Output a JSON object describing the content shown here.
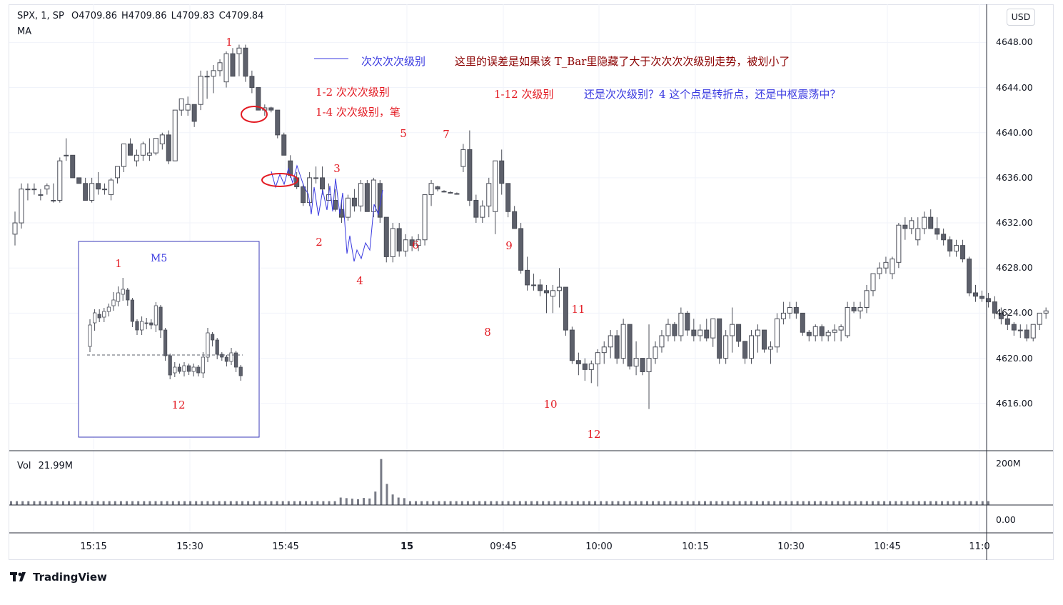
{
  "header": {
    "symbol_line": "SPX, 1, SP",
    "ohlc": [
      {
        "key": "O",
        "value": "4709.86"
      },
      {
        "key": "H",
        "value": "4709.86"
      },
      {
        "key": "L",
        "value": "4709.83"
      },
      {
        "key": "C",
        "value": "4709.84"
      }
    ],
    "indicator": "MA",
    "currency_button": "USD"
  },
  "price_axis": {
    "ticks": [
      "4648.00",
      "4644.00",
      "4640.00",
      "4636.00",
      "4632.00",
      "4628.00",
      "4624.00",
      "4620.00",
      "4616.00"
    ],
    "volume_ticks": [
      "200M",
      "0.00"
    ]
  },
  "time_axis": {
    "ticks": [
      "15:15",
      "15:30",
      "15:45",
      "15",
      "09:45",
      "10:00",
      "10:15",
      "10:30",
      "10:45",
      "11:0"
    ],
    "bold_tick": "15"
  },
  "volume_pane": {
    "label": "Vol",
    "value": "21.99M"
  },
  "annotations": {
    "legend_note": "次次次次级别",
    "error_note": "这里的误差是如果该 T_Bar里隐藏了大于次次次次级别走势，被划小了",
    "note_1_2": "1-2 次次次级别",
    "note_1_4": "1-4 次次级别，笔",
    "note_1_12": "1-12 次级别",
    "question_note": "还是次次级别？4 这个点是转折点，还是中枢震荡中？",
    "point_labels": [
      "1",
      "2",
      "3",
      "4",
      "5",
      "6",
      "7",
      "8",
      "9",
      "10",
      "11",
      "12"
    ]
  },
  "inset": {
    "title": "M5",
    "labels": [
      "1",
      "12"
    ]
  },
  "brand": {
    "name": "TradingView"
  },
  "colors": {
    "up_candle": "#ffffff",
    "down_candle": "#5d606b",
    "candle_border": "#4a4d57",
    "annotation_red": "#e31b23",
    "annotation_darkred": "#8b0000",
    "annotation_blue": "#3a3ae0",
    "inset_border": "#3a3ab8",
    "grid": "#f0f3fa"
  },
  "chart_data": {
    "type": "candlestick",
    "y_unit": "price",
    "ylim": [
      4612.5,
      4651.0
    ],
    "candles": [
      [
        4631,
        4633,
        4630,
        4632
      ],
      [
        4632,
        4635.5,
        4631.5,
        4635
      ],
      [
        4635,
        4635.5,
        4634,
        4635
      ],
      [
        4635,
        4635.5,
        4634.5,
        4635
      ],
      [
        4634.5,
        4635,
        4634,
        4634.5
      ],
      [
        4635,
        4635.5,
        4634.5,
        4635.3
      ],
      [
        4634,
        4635.5,
        4633.8,
        4634
      ],
      [
        4634,
        4637.8,
        4633.8,
        4637.5
      ],
      [
        4638,
        4639.5,
        4637.5,
        4638
      ],
      [
        4638,
        4638,
        4636,
        4636
      ],
      [
        4636,
        4636,
        4635.5,
        4635.5
      ],
      [
        4635.5,
        4636,
        4634,
        4634
      ],
      [
        4634,
        4636,
        4633.8,
        4635.5
      ],
      [
        4635.5,
        4636.5,
        4634.5,
        4635
      ],
      [
        4635,
        4635.5,
        4634.5,
        4635
      ],
      [
        4634.5,
        4636,
        4634,
        4635.8
      ],
      [
        4636,
        4637,
        4635.5,
        4637
      ],
      [
        4637,
        4639,
        4636.5,
        4639
      ],
      [
        4639,
        4639.5,
        4638,
        4638
      ],
      [
        4637.5,
        4638.5,
        4637,
        4638
      ],
      [
        4638,
        4639.2,
        4637.5,
        4639
      ],
      [
        4638,
        4639.5,
        4637.5,
        4638.2
      ],
      [
        4638.2,
        4639.5,
        4638,
        4639.5
      ],
      [
        4639,
        4640,
        4638.5,
        4639.8
      ],
      [
        4639.8,
        4640.2,
        4637.2,
        4637.5
      ],
      [
        4637.5,
        4642,
        4637.5,
        4642
      ],
      [
        4642,
        4643,
        4641.5,
        4643
      ],
      [
        4642,
        4643.2,
        4641.5,
        4642.5
      ],
      [
        4642.5,
        4642.5,
        4640.5,
        4641
      ],
      [
        4642.5,
        4645.5,
        4642,
        4645
      ],
      [
        4645,
        4645.5,
        4643,
        4645
      ],
      [
        4645,
        4646,
        4643.5,
        4645.5
      ],
      [
        4645.5,
        4646.5,
        4645,
        4646.2
      ],
      [
        4644.5,
        4647.2,
        4644,
        4647
      ],
      [
        4647,
        4647.5,
        4645,
        4645
      ],
      [
        4647,
        4647.8,
        4645,
        4647.5
      ],
      [
        4647.5,
        4647.8,
        4644.5,
        4645
      ],
      [
        4645,
        4645.5,
        4643.5,
        4644
      ],
      [
        4644,
        4644,
        4642,
        4642
      ],
      [
        4642,
        4642.5,
        4641.5,
        4642.2
      ],
      [
        4642.2,
        4642.3,
        4641.8,
        4642
      ],
      [
        4642,
        4642,
        4639.5,
        4639.8
      ],
      [
        4639.8,
        4640,
        4638,
        4638
      ],
      [
        4637.5,
        4638,
        4636,
        4636.2
      ],
      [
        4636,
        4636.5,
        4635,
        4635.2
      ],
      [
        4635.2,
        4635.5,
        4633.5,
        4633.8
      ],
      [
        4633.8,
        4636.5,
        4633.5,
        4636
      ],
      [
        4636,
        4637,
        4635.5,
        4636
      ],
      [
        4636,
        4637,
        4634.5,
        4635
      ],
      [
        4634,
        4635.5,
        4634,
        4634.5
      ],
      [
        4634,
        4635,
        4633,
        4633.2
      ],
      [
        4633.2,
        4634,
        4632,
        4632.5
      ],
      [
        4632.5,
        4634.5,
        4632.2,
        4634.2
      ],
      [
        4634.2,
        4635,
        4633,
        4633.5
      ],
      [
        4633.5,
        4635.8,
        4633,
        4635.5
      ],
      [
        4635.5,
        4635.8,
        4633,
        4633
      ],
      [
        4633,
        4636,
        4632.5,
        4635.8
      ],
      [
        4635.5,
        4635.8,
        4632,
        4632.5
      ],
      [
        4632.5,
        4632.5,
        4628.5,
        4629
      ],
      [
        4629,
        4632,
        4628.5,
        4631.5
      ],
      [
        4631.5,
        4632,
        4629,
        4629.5
      ],
      [
        4629.5,
        4631,
        4629,
        4630.5
      ],
      [
        4630.5,
        4630.8,
        4629.5,
        4630
      ],
      [
        4630,
        4631,
        4629.5,
        4630.5
      ],
      [
        4630.5,
        4634.5,
        4630,
        4634.5
      ],
      [
        4634.5,
        4635.8,
        4633.5,
        4635.5
      ],
      [
        4635.2,
        4635.3,
        4634.8,
        4635
      ],
      [
        4634.8,
        4634.9,
        4634.7,
        4634.8
      ],
      [
        4634.7,
        4634.8,
        4634.6,
        4634.7
      ],
      [
        4634.6,
        4634.7,
        4634.5,
        4634.6
      ],
      [
        4637,
        4639,
        4636.5,
        4638.5
      ],
      [
        4638.5,
        4640.2,
        4633.5,
        4634
      ],
      [
        4634,
        4634.5,
        4632,
        4632.5
      ],
      [
        4632.5,
        4634,
        4632,
        4633.5
      ],
      [
        4633.5,
        4636,
        4632.5,
        4635.5
      ],
      [
        4633,
        4637.5,
        4631,
        4637.5
      ],
      [
        4637.5,
        4638.5,
        4634.5,
        4635.5
      ],
      [
        4635.5,
        4635.5,
        4632.5,
        4633
      ],
      [
        4633,
        4633.5,
        4631.5,
        4631.5
      ],
      [
        4631.5,
        4632,
        4627.5,
        4627.8
      ],
      [
        4627.8,
        4629,
        4626,
        4626.5
      ],
      [
        4626.5,
        4627.5,
        4626,
        4626.5
      ],
      [
        4626.5,
        4627,
        4625.5,
        4626
      ],
      [
        4626,
        4626.5,
        4624,
        4625.8
      ],
      [
        4625.5,
        4626.5,
        4624,
        4626
      ],
      [
        4626,
        4628,
        4624.5,
        4626.3
      ],
      [
        4626.3,
        4626.3,
        4622,
        4622.5
      ],
      [
        4622.5,
        4622.8,
        4619.5,
        4619.8
      ],
      [
        4619.8,
        4620.5,
        4618.5,
        4619.5
      ],
      [
        4619.5,
        4620,
        4618,
        4619
      ],
      [
        4619,
        4619.8,
        4617.8,
        4619.5
      ],
      [
        4619.5,
        4620.8,
        4617.5,
        4620.5
      ],
      [
        4620.5,
        4621.5,
        4619.5,
        4621
      ],
      [
        4621,
        4622.5,
        4620,
        4622
      ],
      [
        4622,
        4622.5,
        4619.5,
        4620
      ],
      [
        4620,
        4623.5,
        4619.5,
        4623
      ],
      [
        4623,
        4623,
        4619,
        4619.3
      ],
      [
        4619.3,
        4621.5,
        4618.5,
        4620
      ],
      [
        4620,
        4620,
        4618.5,
        4618.8
      ],
      [
        4618.8,
        4623,
        4615.5,
        4620
      ],
      [
        4620,
        4621.5,
        4619.5,
        4621
      ],
      [
        4621,
        4622.5,
        4620.5,
        4622
      ],
      [
        4622,
        4623.5,
        4621.5,
        4623
      ],
      [
        4623,
        4623.2,
        4621.5,
        4622
      ],
      [
        4622,
        4624.5,
        4621.5,
        4624
      ],
      [
        4624,
        4624.2,
        4622,
        4622.5
      ],
      [
        4622.5,
        4623.5,
        4621.5,
        4622
      ],
      [
        4622,
        4623,
        4621.5,
        4622.5
      ],
      [
        4622.5,
        4623.5,
        4621.5,
        4621.8
      ],
      [
        4621.8,
        4623.5,
        4621,
        4623.5
      ],
      [
        4623.5,
        4623.5,
        4619.5,
        4620
      ],
      [
        4620,
        4622.5,
        4619.5,
        4622
      ],
      [
        4622,
        4624.5,
        4620.5,
        4623
      ],
      [
        4623,
        4623,
        4621,
        4621.5
      ],
      [
        4621.5,
        4621.5,
        4619.5,
        4620
      ],
      [
        4620,
        4622.5,
        4619.5,
        4622
      ],
      [
        4622,
        4623,
        4620.5,
        4622.5
      ],
      [
        4622.5,
        4622.5,
        4620.5,
        4620.8
      ],
      [
        4620.8,
        4621.5,
        4619.5,
        4621
      ],
      [
        4621,
        4624,
        4620.5,
        4623.5
      ],
      [
        4623.5,
        4625,
        4623,
        4624
      ],
      [
        4624,
        4625,
        4623.5,
        4624.5
      ],
      [
        4624.5,
        4625,
        4623.5,
        4624
      ],
      [
        4624,
        4624,
        4622,
        4622.3
      ],
      [
        4622.3,
        4622.5,
        4621.5,
        4622
      ],
      [
        4622,
        4623,
        4621.5,
        4622.8
      ],
      [
        4622.8,
        4623,
        4621.5,
        4622
      ],
      [
        4622,
        4622.5,
        4621.5,
        4622.3
      ],
      [
        4622.3,
        4623,
        4621.5,
        4622.5
      ],
      [
        4622.5,
        4623,
        4621.5,
        4622.8
      ],
      [
        4622,
        4625,
        4621.8,
        4624.5
      ],
      [
        4624.5,
        4625,
        4624,
        4624.2
      ],
      [
        4624.2,
        4625,
        4623.5,
        4624.5
      ],
      [
        4624.5,
        4626.5,
        4624,
        4626
      ],
      [
        4626,
        4627.5,
        4625.5,
        4627.5
      ],
      [
        4627.5,
        4628.5,
        4627,
        4628
      ],
      [
        4628,
        4629,
        4627.5,
        4628.5
      ],
      [
        4627.5,
        4629,
        4627,
        4628.8
      ],
      [
        4628.5,
        4632,
        4628,
        4631.8
      ],
      [
        4631.8,
        4632.5,
        4630.5,
        4631.5
      ],
      [
        4631.5,
        4632.5,
        4631,
        4632.2
      ],
      [
        4630.5,
        4632.5,
        4630,
        4631.5
      ],
      [
        4631.5,
        4633,
        4631,
        4632.5
      ],
      [
        4632.5,
        4633.2,
        4631.8,
        4631.5
      ],
      [
        4631.5,
        4632.5,
        4630.5,
        4631
      ],
      [
        4631,
        4631.5,
        4630,
        4630.5
      ],
      [
        4630.5,
        4630.8,
        4629,
        4629.5
      ],
      [
        4629.5,
        4630.5,
        4629,
        4630
      ],
      [
        4630,
        4630.5,
        4628.5,
        4628.8
      ],
      [
        4628.8,
        4629,
        4625.5,
        4625.8
      ],
      [
        4625.8,
        4626.5,
        4625,
        4625.5
      ],
      [
        4625.5,
        4626,
        4625,
        4625.3
      ],
      [
        4625.3,
        4625.8,
        4624.5,
        4625
      ],
      [
        4625,
        4625.5,
        4623.5,
        4624
      ],
      [
        4624,
        4624.5,
        4623,
        4623.5
      ],
      [
        4623.5,
        4624,
        4622.5,
        4623
      ],
      [
        4623,
        4623.2,
        4622,
        4622.5
      ],
      [
        4622.5,
        4623,
        4621.8,
        4622.5
      ],
      [
        4622.5,
        4623,
        4621.5,
        4621.8
      ],
      [
        4621.8,
        4623,
        4621.5,
        4623
      ],
      [
        4623,
        4624,
        4622.5,
        4624
      ],
      [
        4624,
        4624.5,
        4623.5,
        4624.2
      ]
    ],
    "volume_ylim": [
      0,
      250
    ],
    "volume_baseline": 20
  }
}
